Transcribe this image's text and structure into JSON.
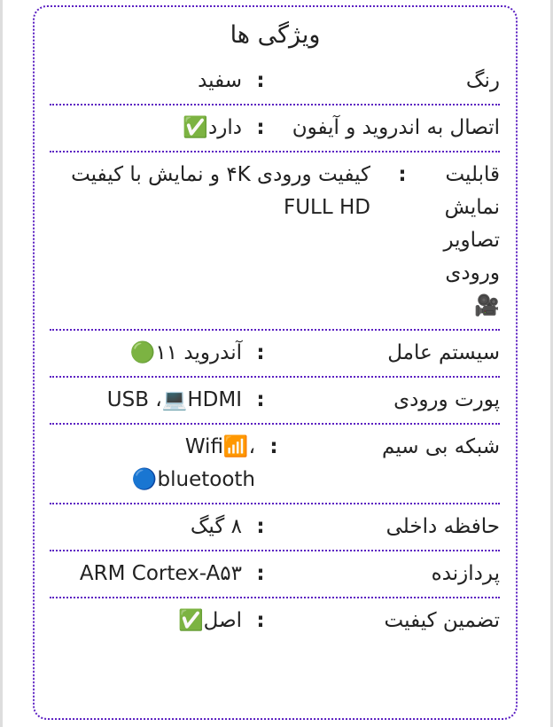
{
  "title": "ویژگی ها",
  "separator": ":",
  "accent_color": "#5b1fc2",
  "rows": [
    {
      "label": "رنگ",
      "value": "سفید"
    },
    {
      "label": "اتصال به اندروید و آیفون",
      "value": "دارد✅"
    },
    {
      "label": "قابلیت نمایش تصاویر ورودی🎥",
      "value": "کیفیت ورودی ۴K و نمایش با کیفیت FULL HD"
    },
    {
      "label": "سیستم عامل",
      "value": "آندروید ۱۱🟢"
    },
    {
      "label": "پورت ورودی",
      "value": "USB ،💻HDMI"
    },
    {
      "label": "شبکه بی سیم",
      "value": "Wifi📶، 🔵bluetooth"
    },
    {
      "label": "حافظه داخلی",
      "value": "۸ گیگ"
    },
    {
      "label": "پردازنده",
      "value": "ARM Cortex-A۵۳"
    },
    {
      "label": "تضمین کیفیت",
      "value": "اصل✅"
    }
  ]
}
